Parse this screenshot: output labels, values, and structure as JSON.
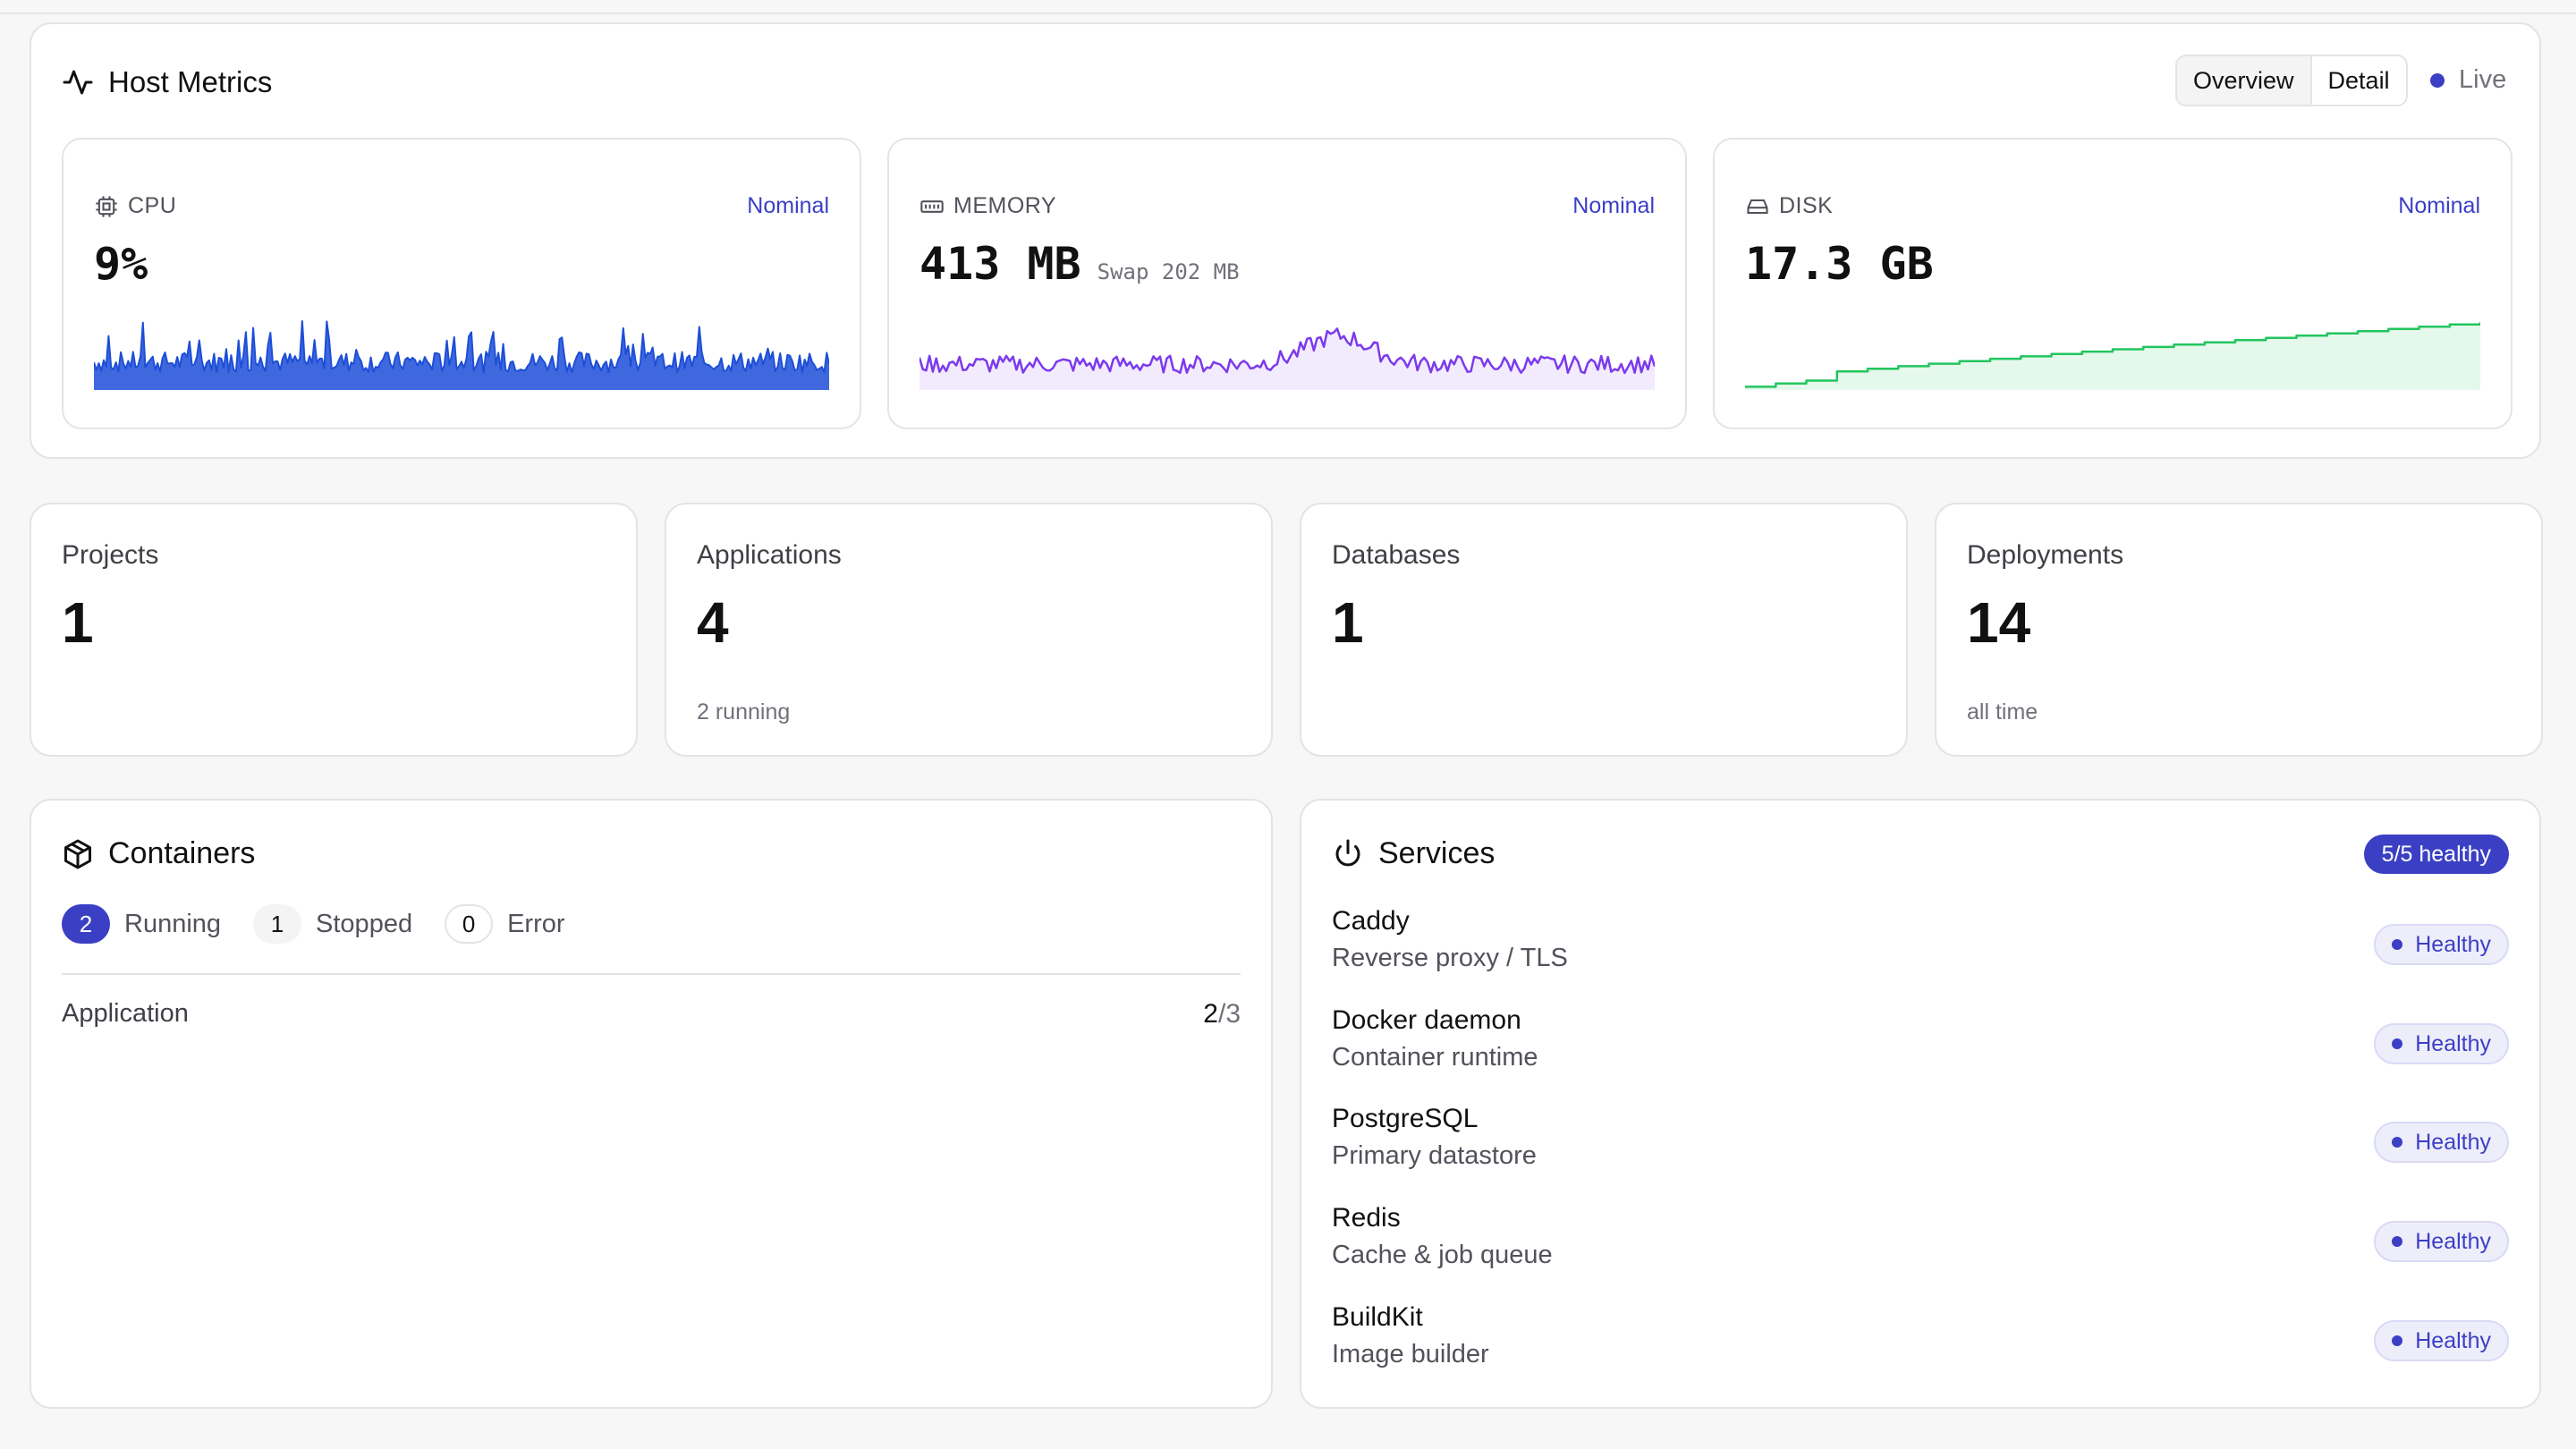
{
  "host": {
    "title": "Host Metrics",
    "view_tabs": [
      "Overview",
      "Detail"
    ],
    "active_tab": "Overview",
    "live_label": "Live",
    "metrics": [
      {
        "key": "cpu",
        "label": "CPU",
        "status": "Nominal",
        "value": "9%",
        "sub": "",
        "color": "#1d4ed8"
      },
      {
        "key": "memory",
        "label": "MEMORY",
        "status": "Nominal",
        "value": "413 MB",
        "sub": "Swap 202 MB",
        "color": "#7c3aed"
      },
      {
        "key": "disk",
        "label": "DISK",
        "status": "Nominal",
        "value": "17.3 GB",
        "sub": "",
        "color": "#22c55e"
      }
    ]
  },
  "stats": [
    {
      "label": "Projects",
      "value": "1",
      "hint": ""
    },
    {
      "label": "Applications",
      "value": "4",
      "hint": "2 running"
    },
    {
      "label": "Databases",
      "value": "1",
      "hint": ""
    },
    {
      "label": "Deployments",
      "value": "14",
      "hint": "all time"
    }
  ],
  "containers": {
    "title": "Containers",
    "running_count": "2",
    "running_label": "Running",
    "stopped_count": "1",
    "stopped_label": "Stopped",
    "error_count": "0",
    "error_label": "Error",
    "rows": [
      {
        "name": "Application",
        "running": "2",
        "total": "3"
      }
    ]
  },
  "services": {
    "title": "Services",
    "summary": "5/5 healthy",
    "items": [
      {
        "name": "Caddy",
        "desc": "Reverse proxy / TLS",
        "status": "Healthy"
      },
      {
        "name": "Docker daemon",
        "desc": "Container runtime",
        "status": "Healthy"
      },
      {
        "name": "PostgreSQL",
        "desc": "Primary datastore",
        "status": "Healthy"
      },
      {
        "name": "Redis",
        "desc": "Cache & job queue",
        "status": "Healthy"
      },
      {
        "name": "BuildKit",
        "desc": "Image builder",
        "status": "Healthy"
      }
    ]
  },
  "colors": {
    "accent": "#3b3fc4",
    "cpu": "#1d4ed8",
    "memory": "#7c3aed",
    "disk": "#22c55e"
  }
}
